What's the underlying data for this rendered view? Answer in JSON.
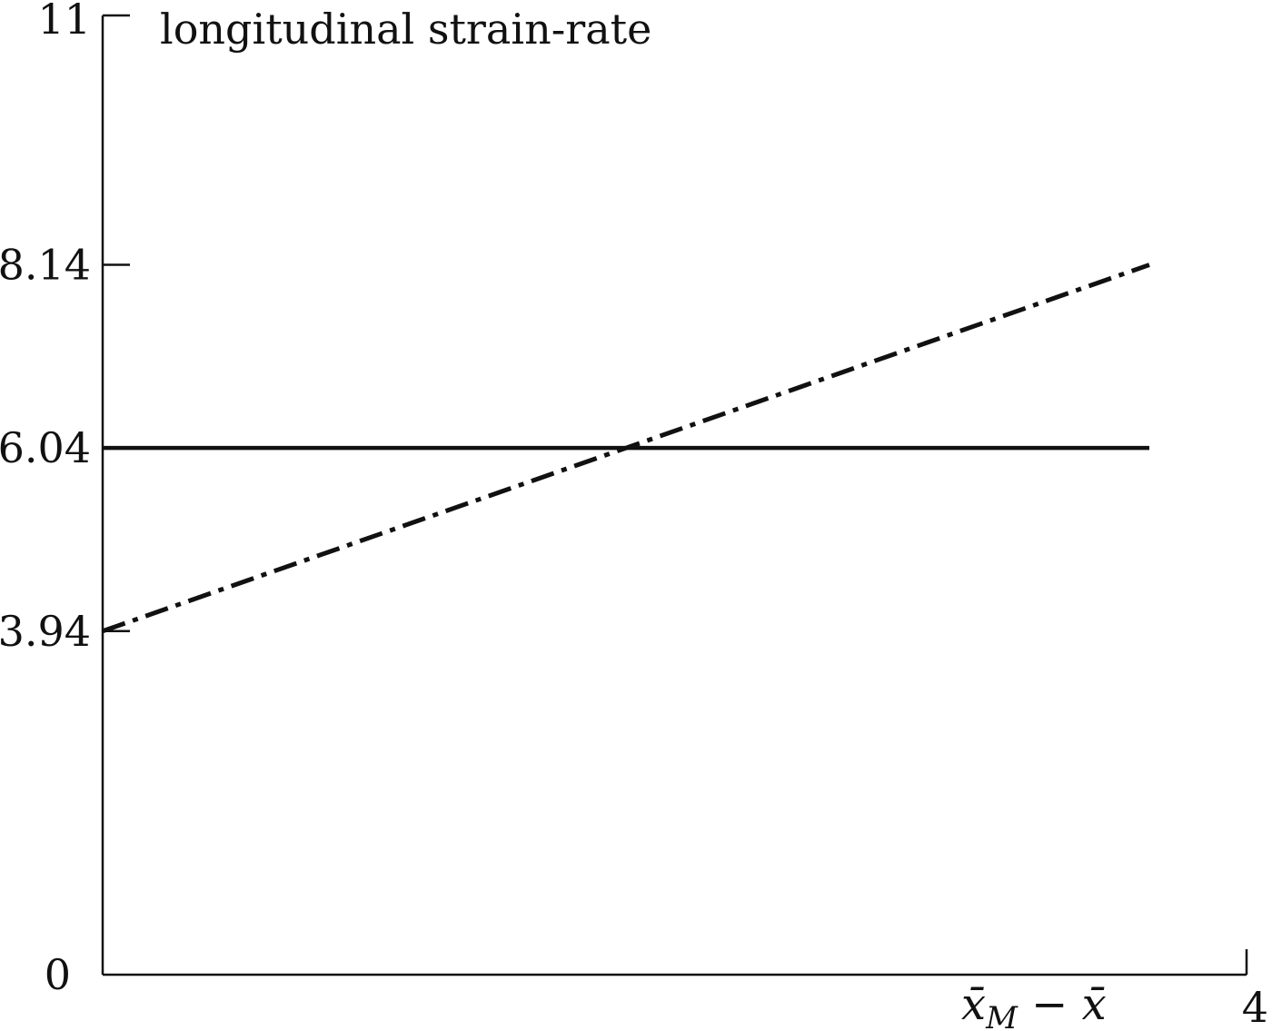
{
  "chart_data": {
    "type": "line",
    "ylabel": "longitudinal strain-rate",
    "xlabel": {
      "base": "x̄",
      "sub": "M",
      "rest": " − x̄"
    },
    "xlim": [
      0,
      4
    ],
    "ylim": [
      0,
      11
    ],
    "x_tick_labels": [
      "4"
    ],
    "y_ticks": [
      {
        "value": 0,
        "label": "0"
      },
      {
        "value": 3.94,
        "label": "3.94"
      },
      {
        "value": 6.04,
        "label": "6.04"
      },
      {
        "value": 8.14,
        "label": "8.14"
      },
      {
        "value": 11,
        "label": "11"
      }
    ],
    "series": [
      {
        "style": "solid",
        "x": [
          0,
          3.66
        ],
        "y": [
          6.04,
          6.04
        ]
      },
      {
        "style": "dash-dot",
        "x": [
          0,
          3.66
        ],
        "y": [
          3.94,
          8.14
        ]
      }
    ],
    "grid": false
  }
}
